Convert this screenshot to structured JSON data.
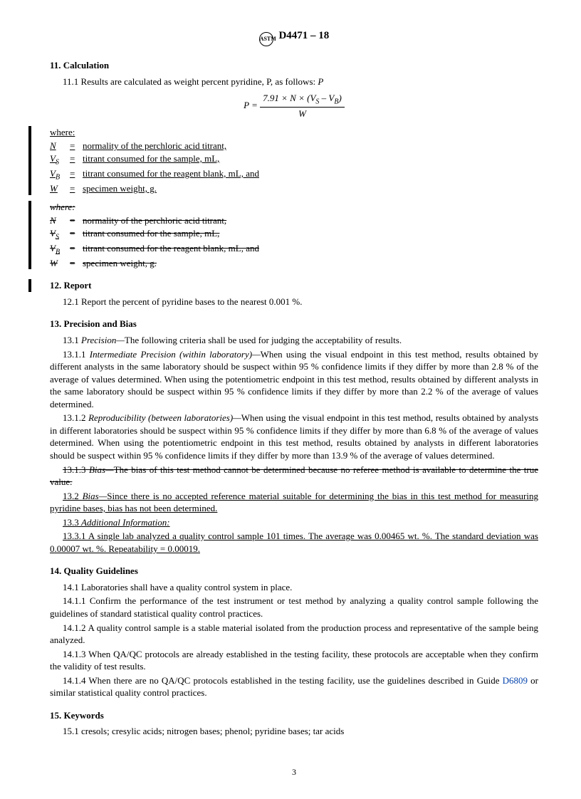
{
  "header": {
    "std_no": "D4471 – 18",
    "logo_text": "ASTM"
  },
  "s11": {
    "title": "11. Calculation",
    "p1": "11.1 Results are calculated as weight percent pyridine, P, as follows:",
    "formula_lhs": "P =",
    "formula_num": "7.91 × N × (V",
    "formula_num_s": "S",
    "formula_num_mid": " – V",
    "formula_num_b": "B",
    "formula_num_end": ")",
    "formula_den": "W",
    "where": "where:",
    "defs": [
      {
        "sym": "N",
        "txt": "normality of the perchloric acid titrant,"
      },
      {
        "sym": "V_S",
        "txt": "titrant consumed for the sample, mL,"
      },
      {
        "sym": "V_B",
        "txt": "titrant consumed for the reagent blank, mL, and"
      },
      {
        "sym": "W",
        "txt": "specimen weight, g."
      }
    ],
    "old_where": "where:",
    "old_defs": [
      {
        "sym": "N",
        "txt": "normality of the perchloric acid titrant,"
      },
      {
        "sym": "V_S",
        "txt": "titrant consumed for the sample, mL,"
      },
      {
        "sym": "V_B",
        "txt": "titrant consumed for the reagent blank, mL, and"
      },
      {
        "sym": "W",
        "txt": "specimen weight, g."
      }
    ]
  },
  "s12": {
    "title": "12. Report",
    "p1": "12.1 Report the percent of pyridine bases to the nearest 0.001 %."
  },
  "s13": {
    "title": "13. Precision and Bias",
    "p1_lead": "13.1 ",
    "p1_head": "Precision—",
    "p1_body": "The following criteria shall be used for judging the acceptability of results.",
    "p11_lead": "13.1.1 ",
    "p11_head": "Intermediate Precision (within laboratory)—",
    "p11_body": "When using the visual endpoint in this test method, results obtained by different analysts in the same laboratory should be suspect within 95 % confidence limits if they differ by more than 2.8 % of the average of values determined. When using the potentiometric endpoint in this test method, results obtained by different analysts in the same laboratory should be suspect within 95 % confidence limits if they differ by more than 2.2 % of the average of values determined.",
    "p12_lead": "13.1.2 ",
    "p12_head": "Reproducibility (between laboratories)—",
    "p12_body": "When using the visual endpoint in this test method, results obtained by analysts in different laboratories should be suspect within 95 % confidence limits if they differ by more than 6.8 % of the average of values determined. When using the potentiometric endpoint in this test method, results obtained by analysts in different laboratories should be suspect within 95 % confidence limits if they differ by more than 13.9 % of the average of values determined.",
    "p13_old_lead": "13.1.3 ",
    "p13_old_head": "Bias—",
    "p13_old_body": "The bias of this test method cannot be determined because no referee method is available to determine the true value.",
    "p2_lead": "13.2 ",
    "p2_head": "Bias—",
    "p2_body": "Since there is no accepted reference material suitable for determining the bias in this test method for measuring pyridine bases, bias has not been determined.",
    "p3_lead": "13.3 ",
    "p3_head": "Additional Information:",
    "p31": "13.3.1 A single lab analyzed a quality control sample 101 times. The average was 0.00465 wt.  %. The standard deviation was 0.00007 wt.  %. Repeatability = 0.00019."
  },
  "s14": {
    "title": "14. Quality Guidelines",
    "p1": "14.1 Laboratories shall have a quality control system in place.",
    "p11": "14.1.1 Confirm the performance of the test instrument or test method by analyzing a quality control sample following the guidelines of standard statistical quality control practices.",
    "p12": "14.1.2 A quality control sample is a stable material isolated from the production process and representative of the sample being analyzed.",
    "p13": "14.1.3 When QA/QC protocols are already established in the testing facility, these protocols are acceptable when they confirm the validity of test results.",
    "p14a": "14.1.4 When there are no QA/QC protocols established in the testing facility, use the guidelines described in Guide ",
    "p14_ref": "D6809",
    "p14b": " or similar statistical quality control practices."
  },
  "s15": {
    "title": "15. Keywords",
    "p1": "15.1 cresols; cresylic acids; nitrogen bases; phenol; pyridine bases; tar acids"
  },
  "pagenum": "3"
}
